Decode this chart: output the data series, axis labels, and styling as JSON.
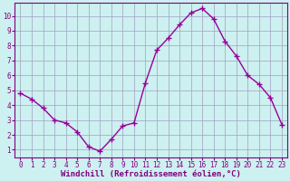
{
  "x": [
    0,
    1,
    2,
    3,
    4,
    5,
    6,
    7,
    8,
    9,
    10,
    11,
    12,
    13,
    14,
    15,
    16,
    17,
    18,
    19,
    20,
    21,
    22,
    23
  ],
  "y": [
    4.8,
    4.4,
    3.8,
    3.0,
    2.8,
    2.2,
    1.2,
    0.9,
    1.7,
    2.6,
    2.8,
    5.5,
    7.7,
    8.5,
    9.4,
    10.2,
    10.5,
    9.8,
    8.3,
    7.3,
    6.0,
    5.4,
    4.5,
    2.7
  ],
  "line_color": "#990099",
  "marker": "+",
  "markersize": 4,
  "markeredgewidth": 1.0,
  "linewidth": 1.0,
  "bg_color": "#cdf0f0",
  "grid_color": "#a0a0c0",
  "grid_linewidth": 0.5,
  "xlabel": "Windchill (Refroidissement éolien,°C)",
  "xlabel_color": "#800080",
  "tick_color": "#800080",
  "ylim": [
    0.5,
    10.9
  ],
  "xlim": [
    -0.5,
    23.5
  ],
  "yticks": [
    1,
    2,
    3,
    4,
    5,
    6,
    7,
    8,
    9,
    10
  ],
  "xticks": [
    0,
    1,
    2,
    3,
    4,
    5,
    6,
    7,
    8,
    9,
    10,
    11,
    12,
    13,
    14,
    15,
    16,
    17,
    18,
    19,
    20,
    21,
    22,
    23
  ],
  "spine_color": "#800080",
  "xlabel_fontsize": 6.5,
  "tick_fontsize": 5.5
}
